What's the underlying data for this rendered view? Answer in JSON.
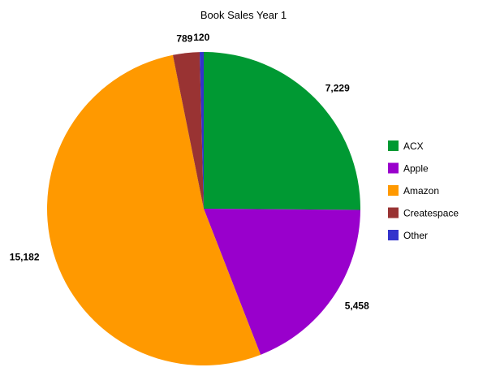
{
  "chart_data": {
    "type": "pie",
    "title": "Book Sales Year 1",
    "slices": [
      {
        "name": "ACX",
        "value": 7229,
        "label": "7,229",
        "color": "#009933"
      },
      {
        "name": "Apple",
        "value": 5458,
        "label": "5,458",
        "color": "#9900cc"
      },
      {
        "name": "Amazon",
        "value": 15182,
        "label": "15,182",
        "color": "#ff9900"
      },
      {
        "name": "Createspace",
        "value": 789,
        "label": "789",
        "color": "#993333"
      },
      {
        "name": "Other",
        "value": 120,
        "label": "120",
        "color": "#3333cc"
      }
    ],
    "legend_position": "right",
    "start_angle": "12 o'clock",
    "direction": "clockwise"
  }
}
